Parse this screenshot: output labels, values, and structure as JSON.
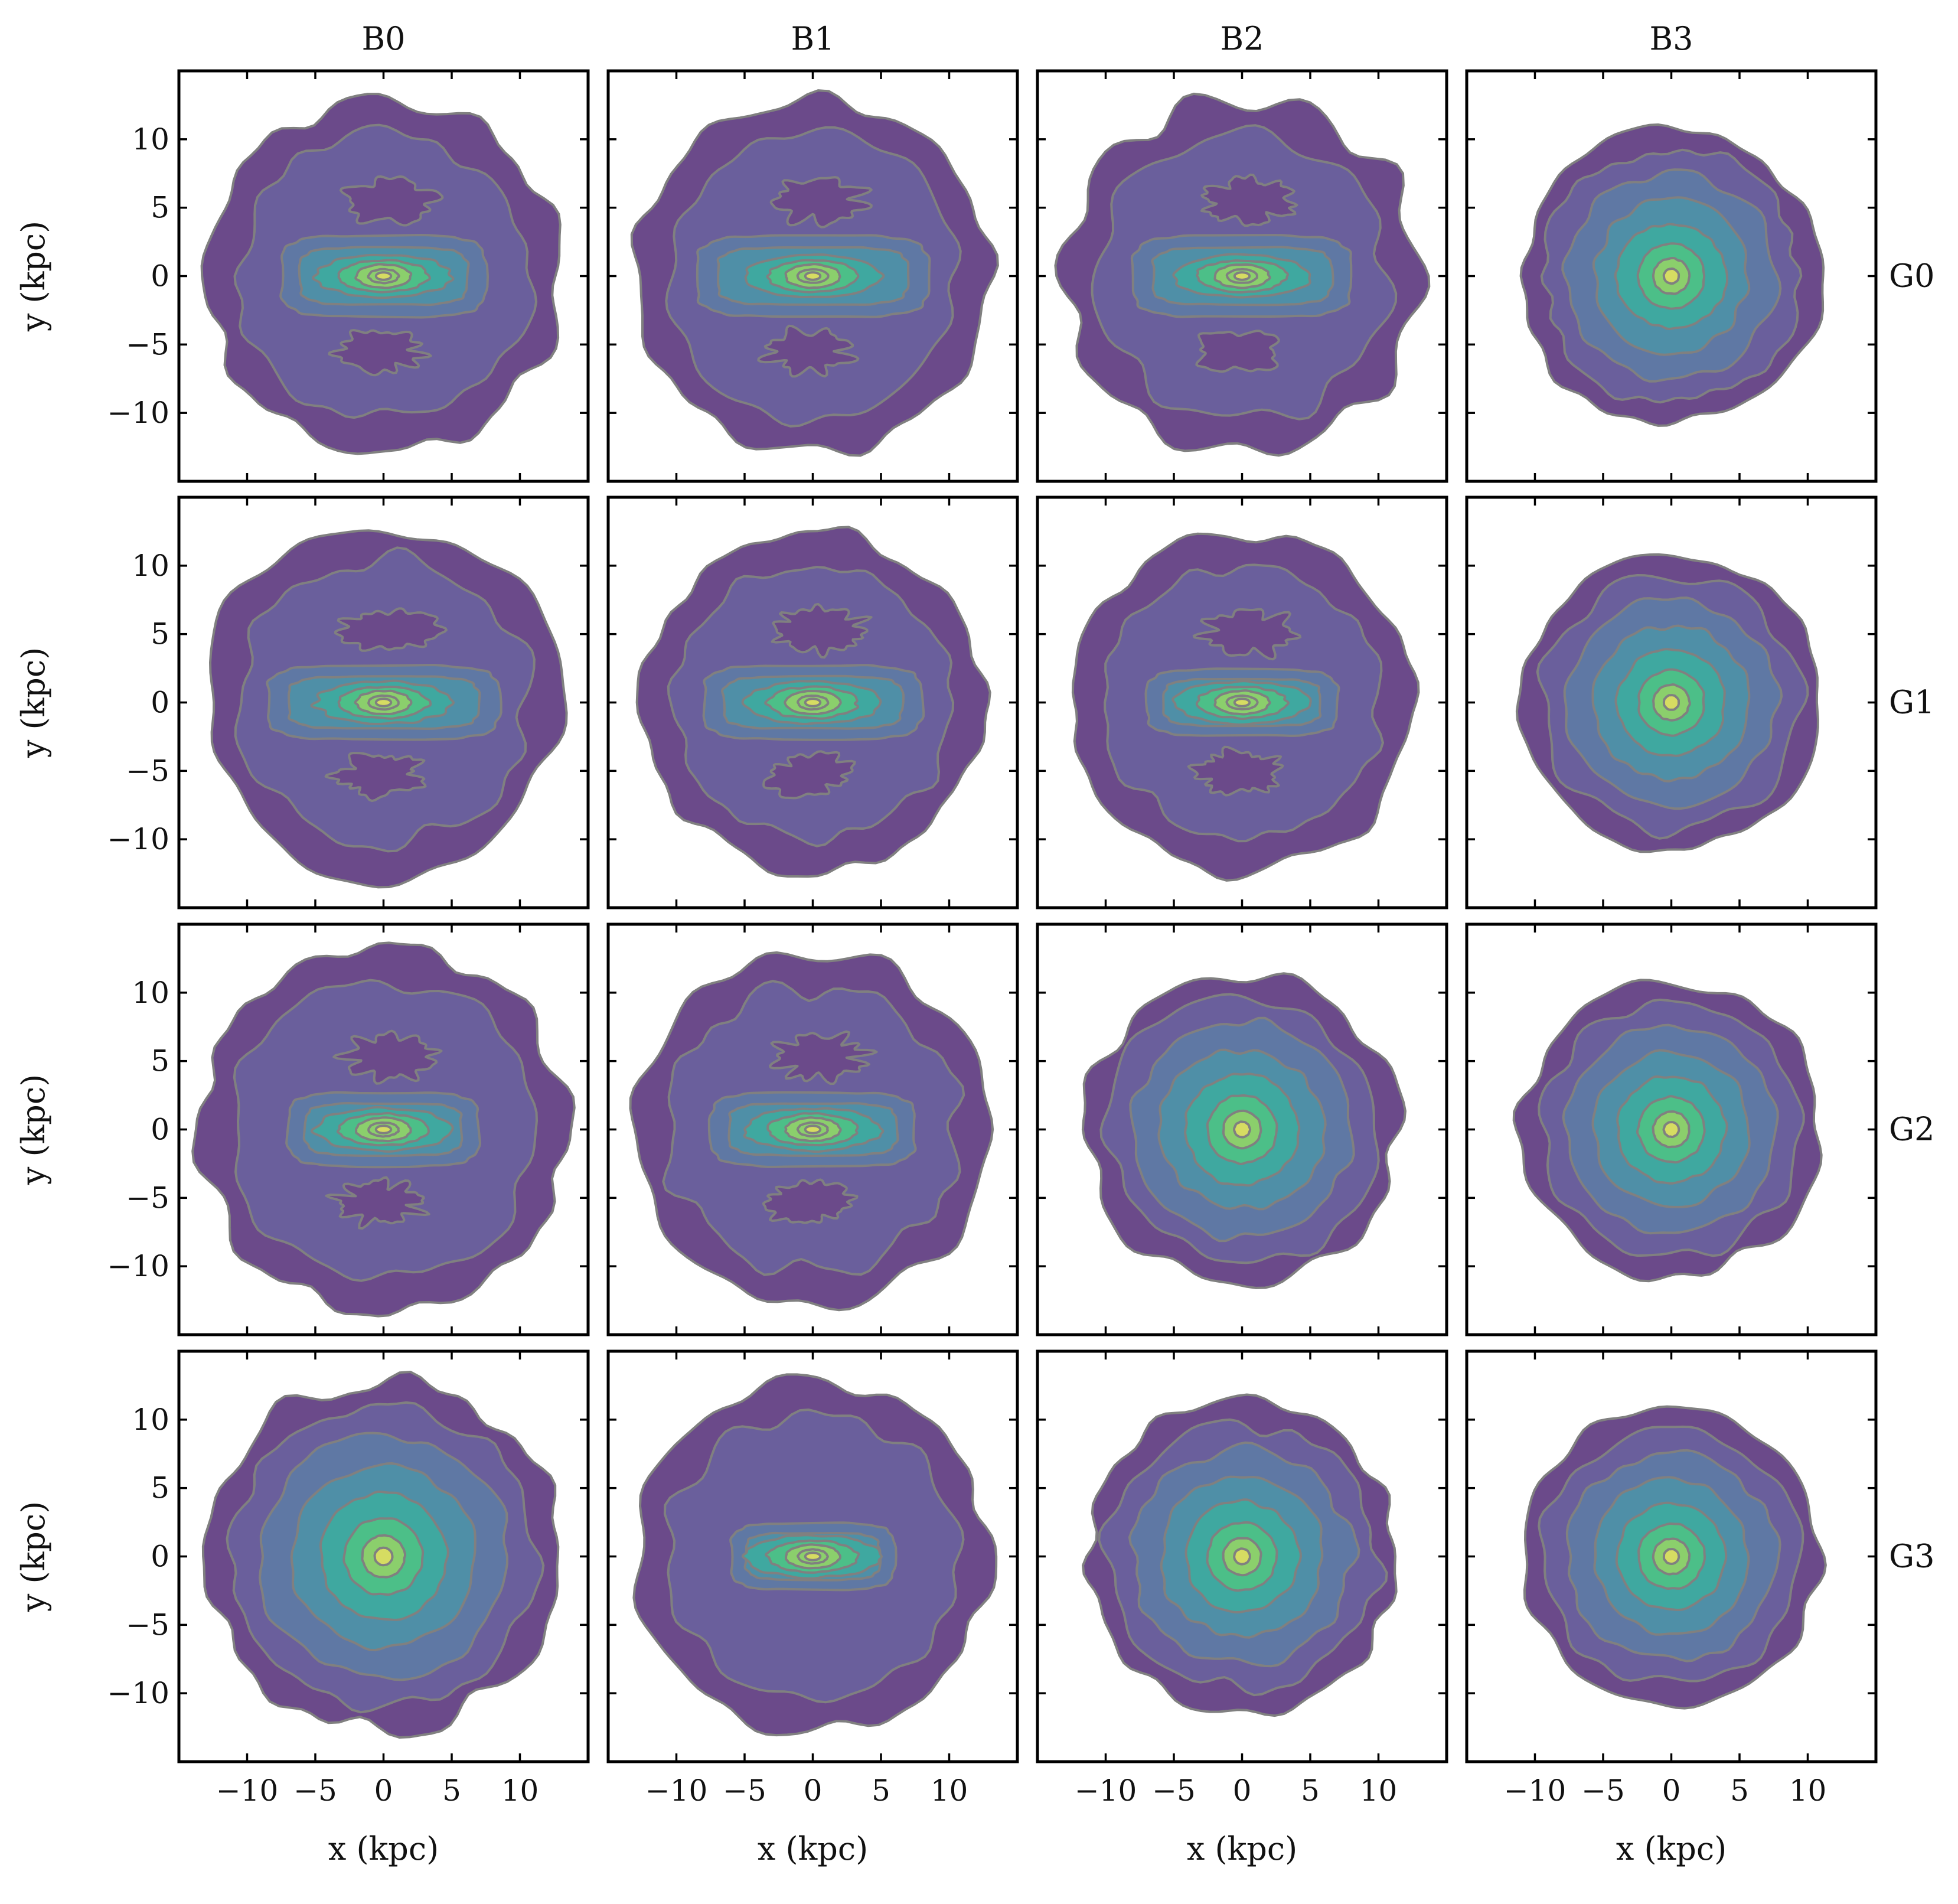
{
  "chart_data": {
    "type": "contour",
    "layout": "4x4 grid of panels, shared axes",
    "column_titles": [
      "B0",
      "B1",
      "B2",
      "B3"
    ],
    "row_titles": [
      "G0",
      "G1",
      "G2",
      "G3"
    ],
    "xlabel": "x (kpc)",
    "ylabel": "y (kpc)",
    "xlim": [
      -15,
      15
    ],
    "ylim": [
      -15,
      15
    ],
    "xticks": [
      -10,
      -5,
      0,
      5,
      10
    ],
    "yticks": [
      -10,
      -5,
      0,
      5,
      10
    ],
    "xtick_labels": [
      "−10",
      "−5",
      "0",
      "5",
      "10"
    ],
    "ytick_labels": [
      "−10",
      "−5",
      "0",
      "5",
      "10"
    ],
    "levels": 8,
    "colors": [
      "#6b4a8a",
      "#6a5f9c",
      "#5f78a4",
      "#4f8fa7",
      "#3fa8a0",
      "#4cbf88",
      "#8bcf6c",
      "#d6dc62"
    ],
    "contour_line_color": "#808080",
    "panels": [
      {
        "row": "G0",
        "col": "B0",
        "morphology": "bar",
        "outer_radius_kpc": 13.0,
        "bar_half_length_kpc": 7.5,
        "bar_half_width_kpc": 2.2,
        "gaps_above_below_bar": true
      },
      {
        "row": "G0",
        "col": "B1",
        "morphology": "bar",
        "outer_radius_kpc": 13.0,
        "bar_half_length_kpc": 8.5,
        "bar_half_width_kpc": 2.2,
        "gaps_above_below_bar": true
      },
      {
        "row": "G0",
        "col": "B2",
        "morphology": "bar",
        "outer_radius_kpc": 13.0,
        "bar_half_length_kpc": 8.0,
        "bar_half_width_kpc": 2.2,
        "gaps_above_below_bar": true
      },
      {
        "row": "G0",
        "col": "B3",
        "morphology": "axisymmetric",
        "outer_radius_kpc": 11.0
      },
      {
        "row": "G1",
        "col": "B0",
        "morphology": "bar",
        "outer_radius_kpc": 13.0,
        "bar_half_length_kpc": 8.5,
        "bar_half_width_kpc": 2.0,
        "gaps_above_below_bar": true
      },
      {
        "row": "G1",
        "col": "B1",
        "morphology": "bar",
        "outer_radius_kpc": 12.5,
        "bar_half_length_kpc": 8.0,
        "bar_half_width_kpc": 2.0,
        "gaps_above_below_bar": true
      },
      {
        "row": "G1",
        "col": "B2",
        "morphology": "bar",
        "outer_radius_kpc": 12.5,
        "bar_half_length_kpc": 7.0,
        "bar_half_width_kpc": 1.8,
        "gaps_above_below_bar": true
      },
      {
        "row": "G1",
        "col": "B3",
        "morphology": "axisymmetric",
        "outer_radius_kpc": 11.0
      },
      {
        "row": "G2",
        "col": "B0",
        "morphology": "bar",
        "outer_radius_kpc": 13.5,
        "bar_half_length_kpc": 7.0,
        "bar_half_width_kpc": 2.0,
        "gaps_above_below_bar": true
      },
      {
        "row": "G2",
        "col": "B1",
        "morphology": "bar",
        "outer_radius_kpc": 13.0,
        "bar_half_length_kpc": 7.5,
        "bar_half_width_kpc": 2.0,
        "gaps_above_below_bar": true
      },
      {
        "row": "G2",
        "col": "B2",
        "morphology": "axisymmetric",
        "outer_radius_kpc": 11.5
      },
      {
        "row": "G2",
        "col": "B3",
        "morphology": "axisymmetric",
        "outer_radius_kpc": 11.0
      },
      {
        "row": "G3",
        "col": "B0",
        "morphology": "axisymmetric",
        "outer_radius_kpc": 13.0
      },
      {
        "row": "G3",
        "col": "B1",
        "morphology": "bar",
        "outer_radius_kpc": 13.0,
        "bar_half_length_kpc": 6.0,
        "bar_half_width_kpc": 1.8,
        "gaps_above_below_bar": false
      },
      {
        "row": "G3",
        "col": "B2",
        "morphology": "axisymmetric",
        "outer_radius_kpc": 11.5
      },
      {
        "row": "G3",
        "col": "B3",
        "morphology": "axisymmetric",
        "outer_radius_kpc": 11.0
      }
    ]
  }
}
